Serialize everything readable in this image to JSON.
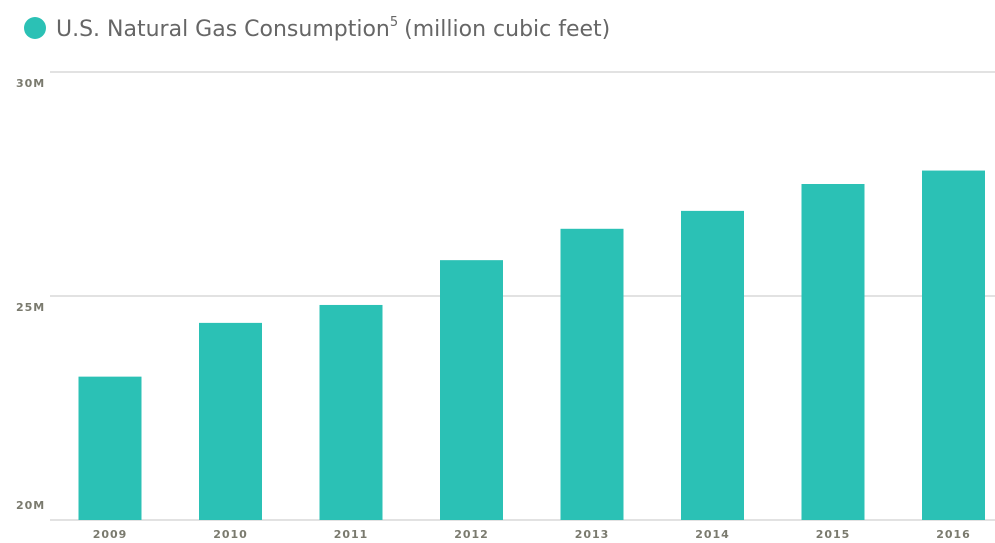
{
  "chart_data": {
    "type": "bar",
    "title": "U.S. Natural Gas Consumption",
    "title_sup": "5",
    "unit": "(million cubic feet)",
    "categories": [
      "2009",
      "2010",
      "2011",
      "2012",
      "2013",
      "2014",
      "2015",
      "2016"
    ],
    "values": [
      23.2,
      24.4,
      24.8,
      25.8,
      26.5,
      26.9,
      27.5,
      27.8
    ],
    "color": "#2bc1b5",
    "ylim": [
      20,
      30
    ],
    "yticks": [
      {
        "value": 20,
        "label": "20M"
      },
      {
        "value": 25,
        "label": "25M"
      },
      {
        "value": 30,
        "label": "30M"
      }
    ],
    "grid": true
  }
}
